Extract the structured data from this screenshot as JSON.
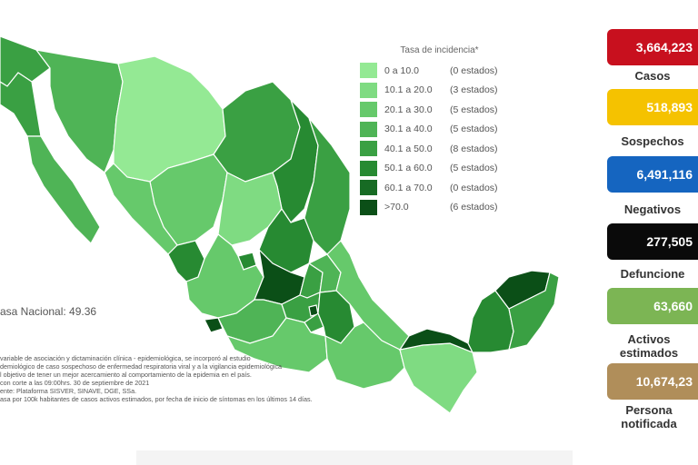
{
  "legend": {
    "title": "Tasa de incidencia*",
    "rows": [
      {
        "range": "0  a  10.0",
        "count": "(0 estados)",
        "color": "#94e994"
      },
      {
        "range": "10.1 a  20.0",
        "count": "(3 estados)",
        "color": "#7fdb82"
      },
      {
        "range": "20.1 a  30.0",
        "count": "(5 estados)",
        "color": "#66c96b"
      },
      {
        "range": "30.1 a  40.0",
        "count": "(5 estados)",
        "color": "#4fb456"
      },
      {
        "range": "40.1 a  50.0",
        "count": "(8 estados)",
        "color": "#3aa043"
      },
      {
        "range": "50.1 a  60.0",
        "count": "(5 estados)",
        "color": "#278a32"
      },
      {
        "range": "60.1 a  70.0",
        "count": "(0 estados)",
        "color": "#176b24"
      },
      {
        "range": ">70.0",
        "count": "(6 estados)",
        "color": "#0b4f17"
      }
    ]
  },
  "national_rate": "asa Nacional: 49.36",
  "notes": [
    "variable de asociación y dictaminación clínica - epidemiológica, se incorporó al estudio",
    "demiológico de caso sospechoso de enfermedad respiratoria viral y a la vigilancia epidemiológica",
    "l objetivo de tener un mejor acercamiento al comportamiento de la epidemia en el país.",
    "con corte a las 09:00hrs. 30 de septiembre de 2021",
    "ente: Plataforma SISVER, SINAVE, DGE, SSa.",
    "asa por 100k habitantes de casos activos estimados, por fecha de inicio de síntomas en los últimos 14 días."
  ],
  "stats": [
    {
      "value": "3,664,223",
      "label": "Casos",
      "color": "#c8101e"
    },
    {
      "value": "518,893",
      "label": "Sospechos",
      "color": "#f5c200"
    },
    {
      "value": "6,491,116",
      "label": "Negativos",
      "color": "#1565c0"
    },
    {
      "value": "277,505",
      "label": "Defuncione",
      "color": "#0a0a0a"
    },
    {
      "value": "63,660",
      "label": "Activos estimados",
      "color": "#7cb554"
    },
    {
      "value": "10,674,23",
      "label": "Persona notificada",
      "color": "#b08e5a"
    }
  ]
}
